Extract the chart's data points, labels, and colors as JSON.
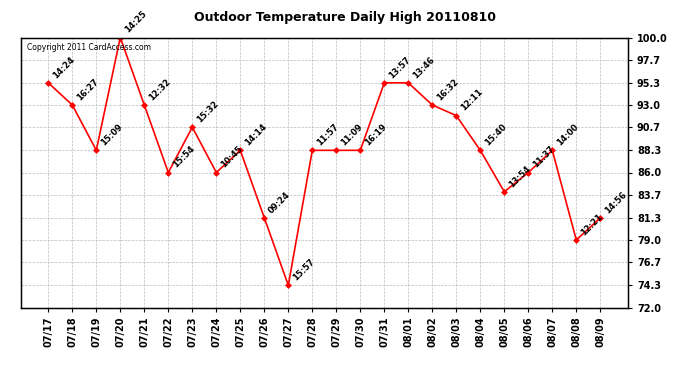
{
  "title": "Outdoor Temperature Daily High 20110810",
  "watermark": "Copyright 2011 CardAccess.com",
  "dates": [
    "07/17",
    "07/18",
    "07/19",
    "07/20",
    "07/21",
    "07/22",
    "07/23",
    "07/24",
    "07/25",
    "07/26",
    "07/27",
    "07/28",
    "07/29",
    "07/30",
    "07/31",
    "08/01",
    "08/02",
    "08/03",
    "08/04",
    "08/05",
    "08/06",
    "08/07",
    "08/08",
    "08/09"
  ],
  "values": [
    95.3,
    93.0,
    88.3,
    100.0,
    93.0,
    86.0,
    90.7,
    86.0,
    88.3,
    81.3,
    74.3,
    88.3,
    88.3,
    88.3,
    95.3,
    95.3,
    93.0,
    91.9,
    88.3,
    84.0,
    86.0,
    88.3,
    79.0,
    81.3
  ],
  "labels": [
    "14:24",
    "16:27",
    "15:09",
    "14:25",
    "12:32",
    "15:54",
    "15:32",
    "10:45",
    "14:14",
    "09:24",
    "15:57",
    "11:57",
    "11:09",
    "16:19",
    "13:57",
    "13:46",
    "16:32",
    "12:11",
    "15:40",
    "13:54",
    "11:37",
    "14:00",
    "12:21",
    "14:56"
  ],
  "ylim_min": 72.0,
  "ylim_max": 100.0,
  "yticks": [
    72.0,
    74.3,
    76.7,
    79.0,
    81.3,
    83.7,
    86.0,
    88.3,
    90.7,
    93.0,
    95.3,
    97.7,
    100.0
  ],
  "line_color": "red",
  "marker_color": "red",
  "background_color": "white",
  "grid_color": "#bbbbbb",
  "title_fontsize": 9,
  "label_fontsize": 6,
  "tick_fontsize": 7,
  "watermark_fontsize": 5.5
}
